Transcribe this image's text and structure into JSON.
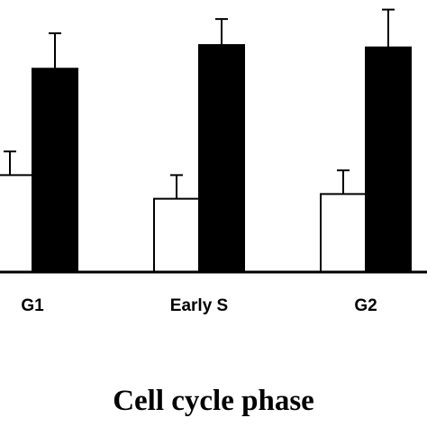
{
  "chart_data": {
    "type": "bar",
    "title": "",
    "xlabel": "Cell cycle phase",
    "ylabel": "",
    "categories": [
      "G1",
      "Early S",
      "G2"
    ],
    "series": [
      {
        "fill": "#ffffff",
        "values": [
          41,
          31,
          33
        ],
        "errors": [
          10,
          10,
          10
        ]
      },
      {
        "fill": "#000000",
        "values": [
          86,
          96,
          95
        ],
        "errors": [
          15,
          11,
          16
        ]
      }
    ],
    "ylim": [
      0,
      112
    ],
    "grid": false,
    "legend": "none"
  }
}
